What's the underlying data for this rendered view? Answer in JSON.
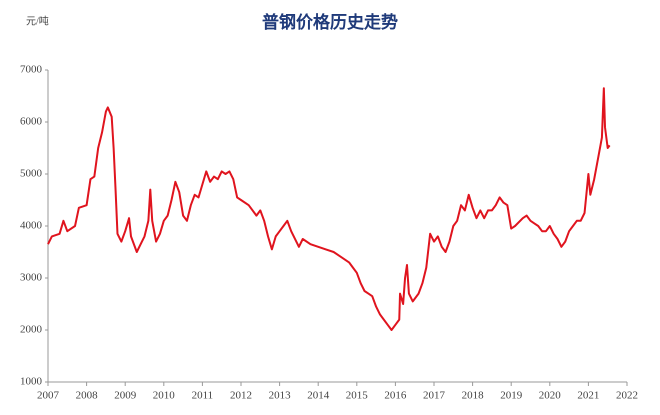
{
  "chart_data": {
    "type": "line",
    "title": "普钢价格历史走势",
    "y_label": "元/吨",
    "x": [
      2007.0,
      2007.1,
      2007.3,
      2007.4,
      2007.5,
      2007.7,
      2007.8,
      2008.0,
      2008.1,
      2008.2,
      2008.3,
      2008.4,
      2008.5,
      2008.55,
      2008.65,
      2008.7,
      2008.75,
      2008.8,
      2008.9,
      2009.0,
      2009.1,
      2009.15,
      2009.3,
      2009.4,
      2009.5,
      2009.6,
      2009.65,
      2009.7,
      2009.8,
      2009.9,
      2010.0,
      2010.1,
      2010.2,
      2010.3,
      2010.4,
      2010.5,
      2010.6,
      2010.7,
      2010.8,
      2010.9,
      2011.0,
      2011.1,
      2011.2,
      2011.3,
      2011.4,
      2011.5,
      2011.6,
      2011.7,
      2011.8,
      2011.9,
      2012.0,
      2012.2,
      2012.4,
      2012.5,
      2012.6,
      2012.7,
      2012.8,
      2012.9,
      2013.0,
      2013.1,
      2013.2,
      2013.3,
      2013.5,
      2013.6,
      2013.8,
      2014.0,
      2014.2,
      2014.4,
      2014.6,
      2014.8,
      2014.9,
      2015.0,
      2015.1,
      2015.2,
      2015.3,
      2015.4,
      2015.5,
      2015.6,
      2015.7,
      2015.8,
      2015.9,
      2016.0,
      2016.1,
      2016.12,
      2016.2,
      2016.25,
      2016.3,
      2016.35,
      2016.45,
      2016.6,
      2016.7,
      2016.8,
      2016.9,
      2017.0,
      2017.1,
      2017.2,
      2017.3,
      2017.4,
      2017.5,
      2017.6,
      2017.7,
      2017.8,
      2017.9,
      2018.0,
      2018.1,
      2018.2,
      2018.3,
      2018.4,
      2018.5,
      2018.6,
      2018.7,
      2018.8,
      2018.9,
      2019.0,
      2019.1,
      2019.3,
      2019.4,
      2019.5,
      2019.6,
      2019.7,
      2019.8,
      2019.9,
      2020.0,
      2020.1,
      2020.2,
      2020.3,
      2020.4,
      2020.5,
      2020.6,
      2020.7,
      2020.8,
      2020.9,
      2021.0,
      2021.05,
      2021.15,
      2021.25,
      2021.35,
      2021.4,
      2021.43,
      2021.5,
      2021.55
    ],
    "series": [
      {
        "name": "普钢价格",
        "color": "#e0141e",
        "values": [
          3650,
          3800,
          3850,
          4100,
          3900,
          4000,
          4350,
          4400,
          4900,
          4950,
          5500,
          5800,
          6200,
          6280,
          6100,
          5500,
          4700,
          3850,
          3700,
          3900,
          4150,
          3800,
          3500,
          3650,
          3800,
          4100,
          4700,
          4100,
          3700,
          3850,
          4100,
          4200,
          4500,
          4850,
          4650,
          4200,
          4100,
          4400,
          4600,
          4550,
          4800,
          5050,
          4850,
          4950,
          4900,
          5050,
          5000,
          5050,
          4900,
          4550,
          4500,
          4400,
          4200,
          4300,
          4100,
          3800,
          3550,
          3800,
          3900,
          4000,
          4100,
          3900,
          3600,
          3750,
          3650,
          3600,
          3550,
          3500,
          3400,
          3300,
          3200,
          3100,
          2900,
          2750,
          2700,
          2650,
          2450,
          2300,
          2200,
          2100,
          2000,
          2100,
          2200,
          2700,
          2500,
          3000,
          3250,
          2700,
          2550,
          2700,
          2900,
          3200,
          3850,
          3700,
          3800,
          3600,
          3500,
          3700,
          4000,
          4100,
          4400,
          4300,
          4600,
          4350,
          4150,
          4300,
          4150,
          4300,
          4300,
          4400,
          4550,
          4450,
          4400,
          3950,
          4000,
          4150,
          4200,
          4100,
          4050,
          4000,
          3900,
          3900,
          4000,
          3850,
          3750,
          3600,
          3700,
          3900,
          4000,
          4100,
          4100,
          4250,
          5000,
          4600,
          4900,
          5300,
          5700,
          6650,
          5900,
          5500,
          5550
        ]
      }
    ],
    "xlim": [
      2007,
      2022
    ],
    "xticks": [
      2007,
      2008,
      2009,
      2010,
      2011,
      2012,
      2013,
      2014,
      2015,
      2016,
      2017,
      2018,
      2019,
      2020,
      2021,
      2022
    ],
    "ylim": [
      1000,
      7000
    ],
    "yticks": [
      1000,
      2000,
      3000,
      4000,
      5000,
      6000,
      7000
    ],
    "grid": false
  }
}
